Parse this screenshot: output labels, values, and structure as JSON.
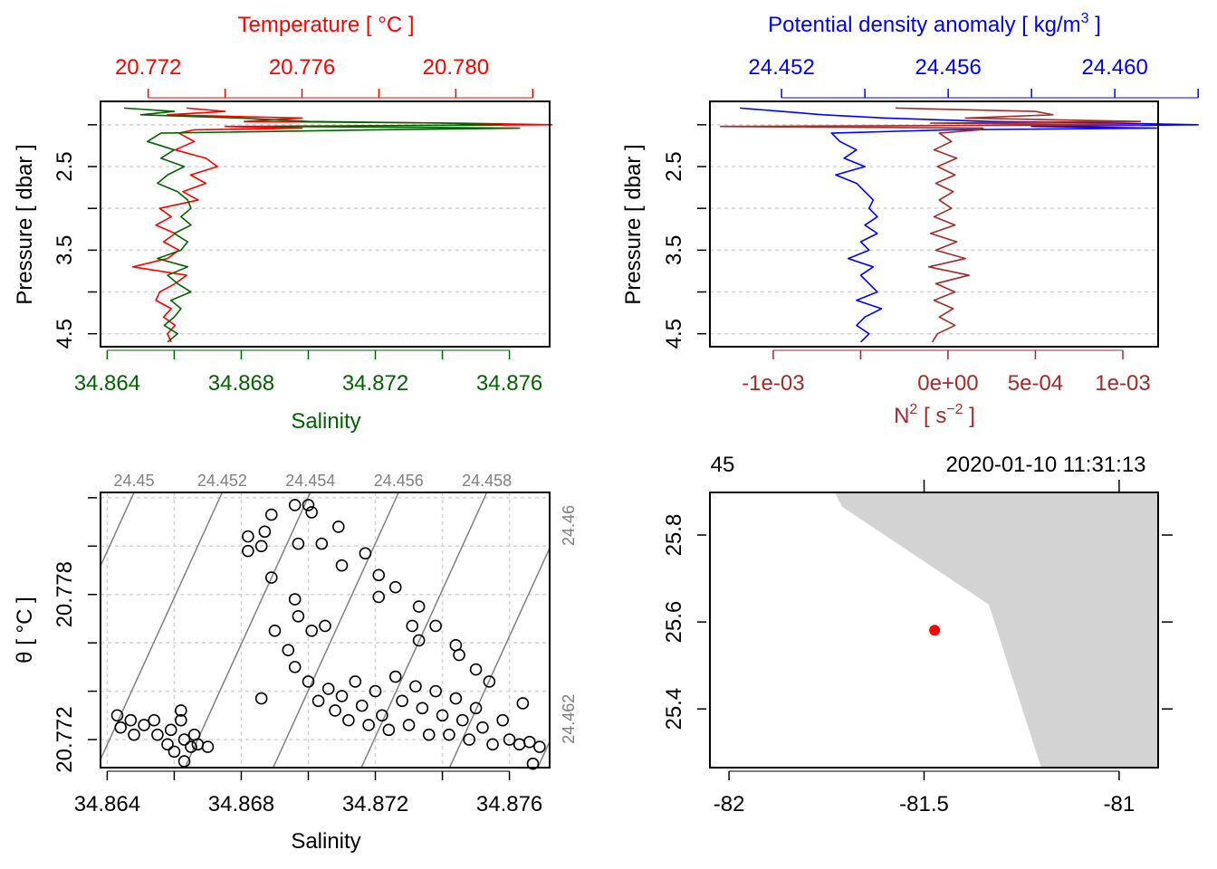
{
  "colors": {
    "temperature": "#ff0000",
    "salinity": "#006400",
    "density": "#0000ff",
    "n2": "#a52a2a",
    "isopycnal": "#808080",
    "land": "#d3d3d3",
    "station": "#ff0000"
  },
  "chart_data": [
    {
      "type": "line",
      "panel": "profile-TS",
      "title": "Temperature [ °C ]",
      "xlabel": "Salinity",
      "ylabel": "Pressure [ dbar ]",
      "temperature_ticks": [
        20.772,
        20.774,
        20.776,
        20.778,
        20.78,
        20.782
      ],
      "temperature_tick_labels": [
        "20.772",
        "",
        "20.776",
        "",
        "20.780",
        ""
      ],
      "temperature_lim": [
        20.77076,
        20.78244
      ],
      "salinity_ticks": [
        34.864,
        34.866,
        34.868,
        34.87,
        34.872,
        34.874,
        34.876
      ],
      "salinity_tick_labels": [
        "34.864",
        "",
        "34.868",
        "",
        "34.872",
        "",
        "34.876"
      ],
      "salinity_lim": [
        34.8638,
        34.8772
      ],
      "pressure_ticks": [
        2.0,
        2.5,
        3.0,
        3.5,
        4.0,
        4.5
      ],
      "pressure_tick_labels": [
        "",
        "2.5",
        "",
        "3.5",
        "",
        "4.5"
      ],
      "pressure_lim": [
        4.655,
        1.72
      ],
      "grid": true,
      "pressure": [
        1.8,
        1.84,
        1.88,
        1.92,
        1.96,
        1.98,
        2.0,
        2.02,
        2.04,
        2.06,
        2.1,
        2.2,
        2.3,
        2.4,
        2.5,
        2.6,
        2.7,
        2.8,
        2.9,
        3.0,
        3.1,
        3.2,
        3.3,
        3.4,
        3.5,
        3.6,
        3.7,
        3.8,
        3.9,
        4.0,
        4.1,
        4.2,
        4.3,
        4.4,
        4.5,
        4.6
      ],
      "series": [
        {
          "name": "Temperature",
          "values": [
            20.773,
            20.774,
            20.7725,
            20.776,
            20.7745,
            20.78,
            20.7825,
            20.774,
            20.776,
            20.7732,
            20.7728,
            20.7732,
            20.7727,
            20.7735,
            20.7738,
            20.7731,
            20.7735,
            20.7729,
            20.7733,
            20.7723,
            20.7726,
            20.7722,
            20.7727,
            20.7724,
            20.7728,
            20.7725,
            20.7716,
            20.773,
            20.7727,
            20.7723,
            20.7722,
            20.7726,
            20.7724,
            20.7727,
            20.7725,
            20.7726
          ]
        },
        {
          "name": "Salinity",
          "values": [
            34.8645,
            34.866,
            34.865,
            34.868,
            34.87,
            34.874,
            34.8758,
            34.869,
            34.8763,
            34.872,
            34.8656,
            34.8652,
            34.866,
            34.8656,
            34.8663,
            34.8658,
            34.8655,
            34.8661,
            34.8664,
            34.8665,
            34.8662,
            34.8665,
            34.866,
            34.8664,
            34.8662,
            34.8655,
            34.8664,
            34.8658,
            34.8661,
            34.8665,
            34.8659,
            34.8662,
            34.866,
            34.8657,
            34.8661,
            34.8658
          ]
        }
      ]
    },
    {
      "type": "line",
      "panel": "profile-density-N2",
      "title_prefix": "Potential density anomaly [ kg/m",
      "title_sup": "3",
      "title_suffix": " ]",
      "xlabel_prefix": "N",
      "xlabel_sup1": "2",
      "xlabel_mid": " [ s",
      "xlabel_sup2": "−2",
      "xlabel_suffix": " ]",
      "ylabel": "Pressure [ dbar ]",
      "density_ticks": [
        24.452,
        24.454,
        24.456,
        24.458,
        24.46,
        24.462
      ],
      "density_tick_labels": [
        "24.452",
        "",
        "24.456",
        "",
        "24.460",
        ""
      ],
      "density_lim": [
        24.45028,
        24.46104
      ],
      "n2_ticks": [
        -0.001,
        -0.0005,
        0,
        0.0005,
        0.001
      ],
      "n2_tick_labels": [
        "-1e-03",
        "",
        "0e+00",
        "5e-04",
        "1e-03"
      ],
      "n2_lim": [
        -0.001362,
        0.001202
      ],
      "pressure_ticks": [
        2.0,
        2.5,
        3.0,
        3.5,
        4.0,
        4.5
      ],
      "pressure_tick_labels": [
        "",
        "2.5",
        "",
        "3.5",
        "",
        "4.5"
      ],
      "pressure_lim": [
        4.655,
        1.72
      ],
      "grid": true,
      "pressure": [
        1.8,
        1.84,
        1.88,
        1.92,
        1.96,
        1.98,
        2.0,
        2.02,
        2.04,
        2.06,
        2.1,
        2.2,
        2.3,
        2.4,
        2.5,
        2.6,
        2.7,
        2.8,
        2.9,
        3.0,
        3.1,
        3.2,
        3.3,
        3.4,
        3.5,
        3.6,
        3.7,
        3.8,
        3.9,
        4.0,
        4.1,
        4.2,
        4.3,
        4.4,
        4.5,
        4.6
      ],
      "series": [
        {
          "name": "Potential density anomaly",
          "values": [
            24.451,
            24.452,
            24.453,
            24.4545,
            24.457,
            24.46,
            24.462,
            24.458,
            24.461,
            24.456,
            24.4532,
            24.4534,
            24.4538,
            24.4535,
            24.454,
            24.4533,
            24.4538,
            24.454,
            24.4542,
            24.4541,
            24.4543,
            24.454,
            24.4543,
            24.4539,
            24.4541,
            24.4536,
            24.4542,
            24.4539,
            24.4541,
            24.4543,
            24.4538,
            24.4544,
            24.454,
            24.4538,
            24.4541,
            24.4539
          ]
        },
        {
          "name": "N2",
          "values": [
            -0.0003,
            0.0005,
            0.0006,
            0.0001,
            0.0011,
            -0.0001,
            0.0011,
            -0.0013,
            0.0002,
            0.00018,
            -5e-05,
            2e-05,
            -8e-05,
            5e-05,
            -6e-05,
            4e-05,
            -7e-05,
            3e-05,
            -5e-05,
            2e-05,
            -8e-05,
            4e-05,
            -0.0001,
            5e-05,
            -7e-05,
            0.0001,
            -0.00011,
            0.00012,
            -7e-05,
            4e-05,
            -8e-05,
            3e-05,
            -5e-05,
            4e-05,
            -6e-05,
            -9e-05
          ]
        }
      ]
    },
    {
      "type": "scatter",
      "panel": "TS-diagram",
      "xlabel": "Salinity",
      "ylabel": "θ [ °C ]",
      "x_ticks": [
        34.864,
        34.866,
        34.868,
        34.87,
        34.872,
        34.874,
        34.876
      ],
      "x_tick_labels": [
        "34.864",
        "",
        "34.868",
        "",
        "34.872",
        "",
        "34.876"
      ],
      "xlim": [
        34.8638,
        34.8772
      ],
      "y_ticks": [
        20.772,
        20.774,
        20.776,
        20.778,
        20.78,
        20.782
      ],
      "y_tick_labels": [
        "20.772",
        "",
        "",
        "20.778",
        "",
        ""
      ],
      "ylim": [
        20.77084,
        20.78222
      ],
      "grid": true,
      "isopycnals": [
        {
          "level": 24.45,
          "label": "24.45",
          "position": "top"
        },
        {
          "level": 24.452,
          "label": "24.452",
          "position": "top"
        },
        {
          "level": 24.454,
          "label": "24.454",
          "position": "top"
        },
        {
          "level": 24.456,
          "label": "24.456",
          "position": "top"
        },
        {
          "level": 24.458,
          "label": "24.458",
          "position": "top"
        },
        {
          "level": 24.46,
          "label": "24.46",
          "position": "right"
        },
        {
          "level": 24.462,
          "label": "24.462",
          "position": "right"
        }
      ],
      "points": [
        [
          34.8643,
          20.773
        ],
        [
          34.8644,
          20.7725
        ],
        [
          34.8647,
          20.7728
        ],
        [
          34.8651,
          20.7726
        ],
        [
          34.8655,
          20.7722
        ],
        [
          34.8659,
          20.7724
        ],
        [
          34.8662,
          20.7728
        ],
        [
          34.8663,
          20.772
        ],
        [
          34.8665,
          20.7717
        ],
        [
          34.866,
          20.7715
        ],
        [
          34.8658,
          20.7718
        ],
        [
          34.8667,
          20.7718
        ],
        [
          34.867,
          20.7717
        ],
        [
          34.8648,
          20.7722
        ],
        [
          34.8654,
          20.7728
        ],
        [
          34.8662,
          20.7732
        ],
        [
          34.8666,
          20.7722
        ],
        [
          34.8663,
          20.7711
        ],
        [
          34.8682,
          20.7804
        ],
        [
          34.8682,
          20.7798
        ],
        [
          34.8686,
          20.78
        ],
        [
          34.8687,
          20.7806
        ],
        [
          34.8689,
          20.7813
        ],
        [
          34.8696,
          20.7817
        ],
        [
          34.87,
          20.7817
        ],
        [
          34.8697,
          20.7801
        ],
        [
          34.8701,
          20.7814
        ],
        [
          34.8704,
          20.7801
        ],
        [
          34.8709,
          20.7808
        ],
        [
          34.8717,
          20.7797
        ],
        [
          34.871,
          20.7792
        ],
        [
          34.8721,
          20.7788
        ],
        [
          34.8726,
          20.7783
        ],
        [
          34.8721,
          20.7779
        ],
        [
          34.8689,
          20.7787
        ],
        [
          34.8696,
          20.7778
        ],
        [
          34.8697,
          20.7771
        ],
        [
          34.8701,
          20.7765
        ],
        [
          34.8705,
          20.7767
        ],
        [
          34.869,
          20.7765
        ],
        [
          34.8694,
          20.7757
        ],
        [
          34.8696,
          20.775
        ],
        [
          34.8686,
          20.7737
        ],
        [
          34.8733,
          20.7775
        ],
        [
          34.8731,
          20.7767
        ],
        [
          34.8738,
          20.7767
        ],
        [
          34.8733,
          20.7761
        ],
        [
          34.8744,
          20.7759
        ],
        [
          34.8745,
          20.7755
        ],
        [
          34.875,
          20.7749
        ],
        [
          34.8754,
          20.7744
        ],
        [
          34.8764,
          20.7735
        ],
        [
          34.8767,
          20.771
        ],
        [
          34.87,
          20.7744
        ],
        [
          34.8703,
          20.7736
        ],
        [
          34.8706,
          20.7741
        ],
        [
          34.8708,
          20.7732
        ],
        [
          34.871,
          20.7738
        ],
        [
          34.8712,
          20.7728
        ],
        [
          34.8714,
          20.7744
        ],
        [
          34.8716,
          20.7734
        ],
        [
          34.8718,
          20.7726
        ],
        [
          34.872,
          20.774
        ],
        [
          34.8722,
          20.773
        ],
        [
          34.8724,
          20.7724
        ],
        [
          34.8726,
          20.7746
        ],
        [
          34.8728,
          20.7736
        ],
        [
          34.873,
          20.7726
        ],
        [
          34.8732,
          20.7742
        ],
        [
          34.8734,
          20.7733
        ],
        [
          34.8736,
          20.7722
        ],
        [
          34.8738,
          20.774
        ],
        [
          34.874,
          20.773
        ],
        [
          34.8742,
          20.7722
        ],
        [
          34.8744,
          20.7737
        ],
        [
          34.8746,
          20.7728
        ],
        [
          34.8748,
          20.772
        ],
        [
          34.875,
          20.7733
        ],
        [
          34.8752,
          20.7725
        ],
        [
          34.8755,
          20.7718
        ],
        [
          34.8758,
          20.7728
        ],
        [
          34.876,
          20.772
        ],
        [
          34.8763,
          20.7718
        ],
        [
          34.8766,
          20.7719
        ],
        [
          34.8769,
          20.7717
        ]
      ]
    },
    {
      "type": "map",
      "panel": "station-map",
      "top_left_label": "45",
      "top_right_label": "2020-01-10 11:31:13",
      "lon_ticks": [
        -82,
        -81.5,
        -81
      ],
      "lon_tick_labels": [
        "-82",
        "-81.5",
        "-81"
      ],
      "lat_ticks": [
        25.4,
        25.6,
        25.8
      ],
      "lat_tick_labels": [
        "25.4",
        "25.6",
        "25.8"
      ],
      "lon_lim": [
        -82.049,
        -80.9
      ],
      "lat_lim": [
        25.265,
        25.898
      ],
      "land_polygon": [
        [
          -81.729,
          25.898
        ],
        [
          -81.71,
          25.865
        ],
        [
          -81.334,
          25.64
        ],
        [
          -81.2,
          25.265
        ],
        [
          -80.9,
          25.265
        ],
        [
          -80.9,
          25.898
        ]
      ],
      "station": {
        "lon": -81.473,
        "lat": 25.581
      }
    }
  ]
}
